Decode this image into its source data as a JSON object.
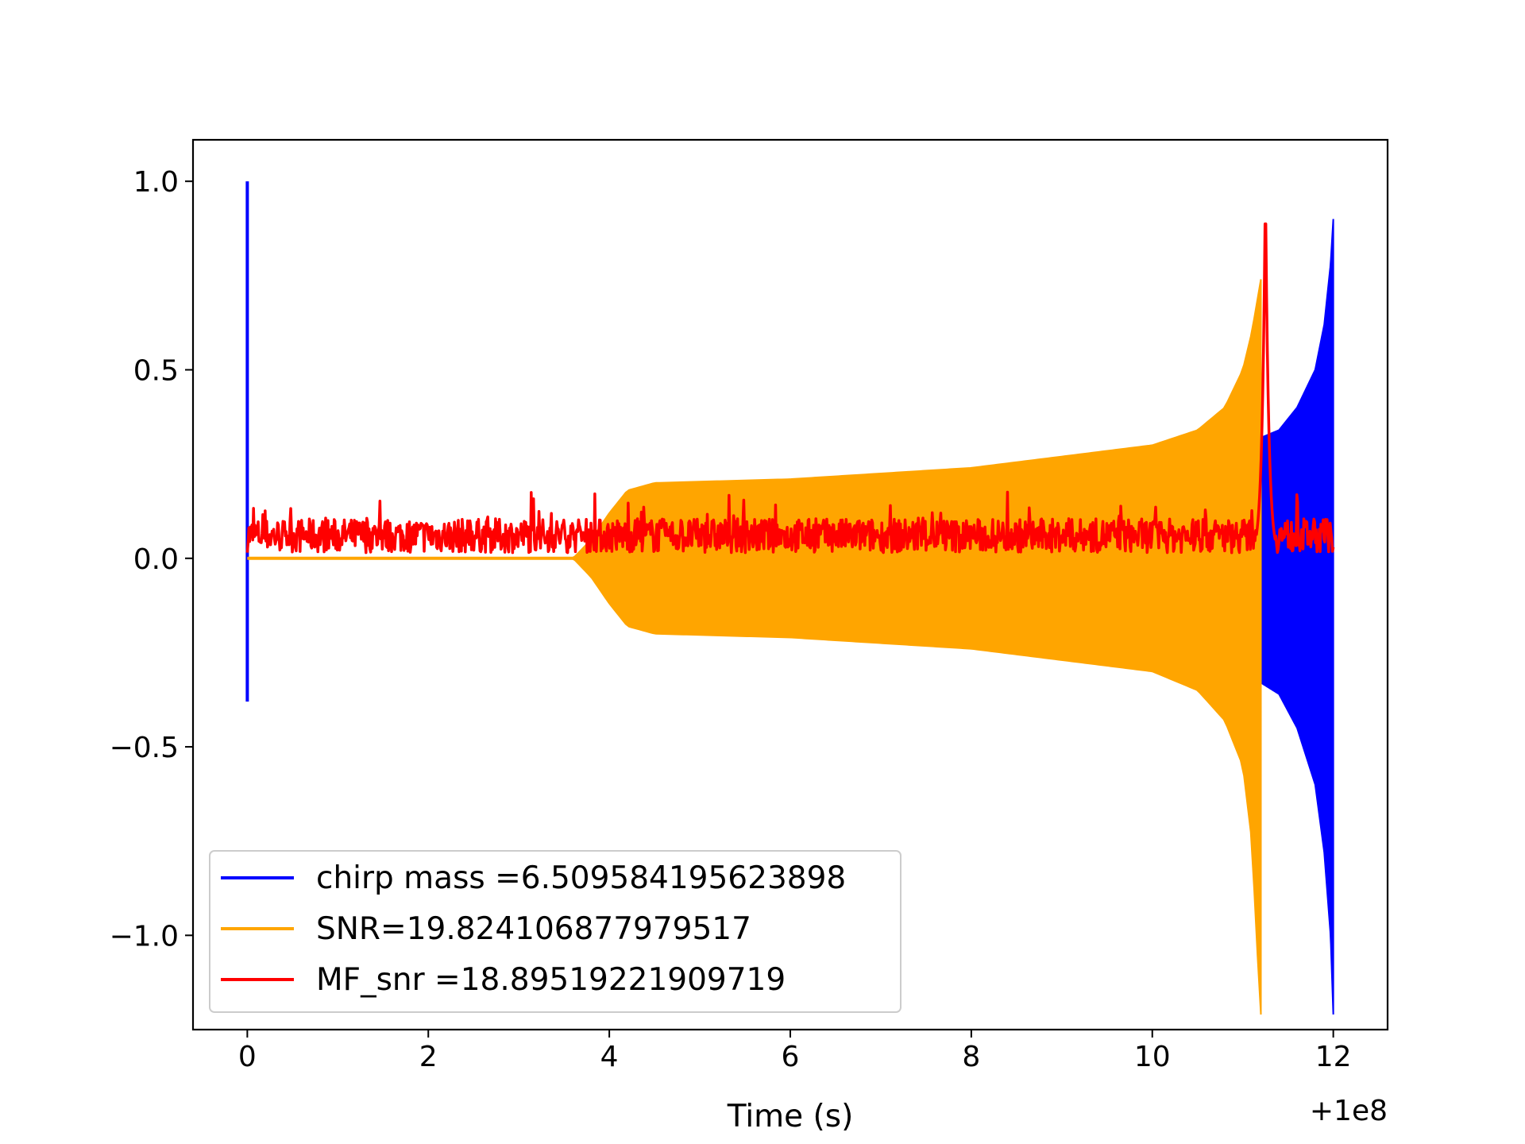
{
  "chart_data": {
    "type": "line",
    "title": "",
    "xlabel": "Time (s)",
    "ylabel": "",
    "x_offset_label": "+1e8",
    "xlim": [
      -0.6,
      12.6
    ],
    "ylim": [
      -1.25,
      1.11
    ],
    "x_ticks": [
      0,
      2,
      4,
      6,
      8,
      10,
      12
    ],
    "x_tick_labels": [
      "0",
      "2",
      "4",
      "6",
      "8",
      "10",
      "12"
    ],
    "y_ticks": [
      -1.0,
      -0.5,
      0.0,
      0.5,
      1.0
    ],
    "y_tick_labels": [
      "−1.0",
      "−0.5",
      "0.0",
      "0.5",
      "1.0"
    ],
    "grid": false,
    "legend_position": "lower-left",
    "series": [
      {
        "name": "chirp mass =6.509584195623898",
        "color": "#0000ff",
        "kind": "chirp-waveform",
        "spike_time": 0.0,
        "spike_max": 1.0,
        "spike_min": -0.38,
        "start": 11.2,
        "end": 12.0,
        "env_upper": [
          [
            11.2,
            0.32
          ],
          [
            11.4,
            0.34
          ],
          [
            11.6,
            0.4
          ],
          [
            11.8,
            0.5
          ],
          [
            11.9,
            0.62
          ],
          [
            11.97,
            0.78
          ],
          [
            12.0,
            0.9
          ]
        ],
        "env_lower": [
          [
            11.2,
            -0.33
          ],
          [
            11.4,
            -0.36
          ],
          [
            11.6,
            -0.45
          ],
          [
            11.8,
            -0.6
          ],
          [
            11.9,
            -0.78
          ],
          [
            11.97,
            -1.0
          ],
          [
            12.0,
            -1.21
          ]
        ]
      },
      {
        "name": "SNR=19.824106877979517",
        "color": "#ffa500",
        "kind": "chirp-waveform",
        "start": 0.0,
        "end": 11.2,
        "env_upper": [
          [
            0.0,
            0.0
          ],
          [
            3.6,
            0.0
          ],
          [
            3.8,
            0.05
          ],
          [
            4.0,
            0.12
          ],
          [
            4.2,
            0.18
          ],
          [
            4.5,
            0.2
          ],
          [
            6.0,
            0.21
          ],
          [
            8.0,
            0.24
          ],
          [
            10.0,
            0.3
          ],
          [
            10.5,
            0.34
          ],
          [
            10.8,
            0.4
          ],
          [
            11.0,
            0.5
          ],
          [
            11.1,
            0.6
          ],
          [
            11.2,
            0.74
          ]
        ],
        "env_lower": [
          [
            0.0,
            0.0
          ],
          [
            3.6,
            0.0
          ],
          [
            3.8,
            -0.05
          ],
          [
            4.0,
            -0.12
          ],
          [
            4.2,
            -0.18
          ],
          [
            4.5,
            -0.2
          ],
          [
            6.0,
            -0.21
          ],
          [
            8.0,
            -0.24
          ],
          [
            10.0,
            -0.3
          ],
          [
            10.5,
            -0.35
          ],
          [
            10.8,
            -0.43
          ],
          [
            11.0,
            -0.55
          ],
          [
            11.1,
            -0.75
          ],
          [
            11.15,
            -1.0
          ],
          [
            11.2,
            -1.21
          ]
        ]
      },
      {
        "name": "MF_snr =18.89519221909719",
        "color": "#ff0000",
        "kind": "noise",
        "start": 0.0,
        "end": 12.0,
        "baseline_min": 0.0,
        "baseline_max": 0.18,
        "peak_time": 11.25,
        "peak_value": 1.0
      }
    ]
  }
}
